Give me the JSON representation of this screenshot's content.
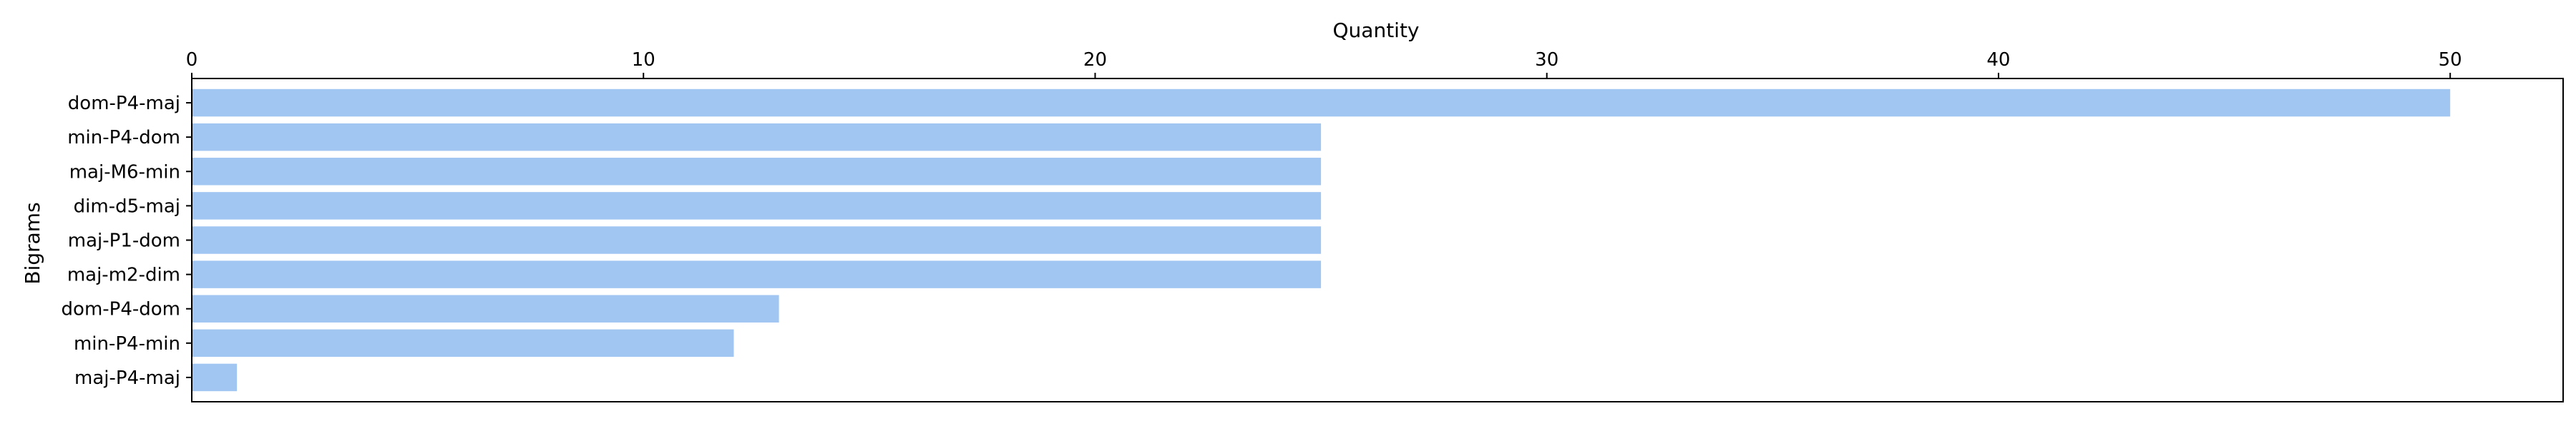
{
  "chart_data": {
    "type": "bar",
    "orientation": "horizontal",
    "title": "",
    "xlabel": "Quantity",
    "ylabel": "Bigrams",
    "x_axis_position": "top",
    "xlim": [
      0,
      52.5
    ],
    "xticks": [
      0,
      10,
      20,
      30,
      40,
      50
    ],
    "grid": false,
    "bar_color": "#a1c6f2",
    "categories": [
      "dom-P4-maj",
      "min-P4-dom",
      "maj-M6-min",
      "dim-d5-maj",
      "maj-P1-dom",
      "maj-m2-dim",
      "dom-P4-dom",
      "min-P4-min",
      "maj-P4-maj"
    ],
    "values": [
      50,
      25,
      25,
      25,
      25,
      25,
      13,
      12,
      1
    ]
  }
}
